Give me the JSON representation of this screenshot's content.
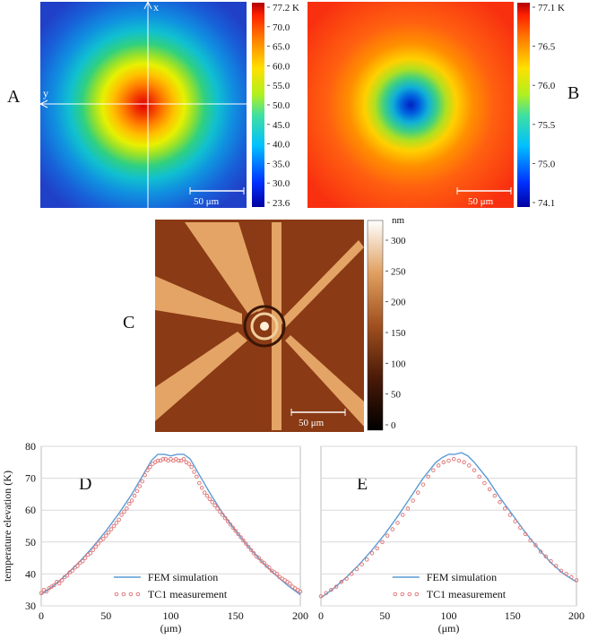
{
  "panels": {
    "A": {
      "letter": "A",
      "axis_x": "x",
      "axis_y": "y",
      "scalebar": "50 μm",
      "colorbar_ticks": [
        "77.2 K",
        "70.0",
        "65.0",
        "60.0",
        "55.0",
        "50.0",
        "45.0",
        "40.0",
        "35.0",
        "30.0",
        "23.6"
      ]
    },
    "B": {
      "letter": "B",
      "scalebar": "50 μm",
      "colorbar_ticks": [
        "77.1 K",
        "76.5",
        "76.0",
        "75.5",
        "75.0",
        "74.1"
      ]
    },
    "C": {
      "letter": "C",
      "scalebar": "50 μm",
      "colorbar_unit": "nm",
      "colorbar_ticks": [
        "300",
        "250",
        "200",
        "150",
        "100",
        "50",
        "0"
      ]
    }
  },
  "chart_data": [
    {
      "panel": "D",
      "type": "line",
      "ylabel": "temperature elevation (K)",
      "xlabel": "(μm)",
      "xlim": [
        0,
        200
      ],
      "ylim": [
        30,
        80
      ],
      "x_ticks": [
        0,
        50,
        100,
        150,
        200
      ],
      "y_ticks": [
        30,
        40,
        50,
        60,
        70,
        80
      ],
      "grid": true,
      "legend_position": "bottom-center",
      "series": [
        {
          "name": "FEM simulation",
          "style": "line",
          "color": "#5b9bd5",
          "x": [
            0,
            10,
            20,
            30,
            40,
            50,
            60,
            70,
            75,
            80,
            85,
            90,
            95,
            100,
            105,
            110,
            115,
            120,
            125,
            130,
            140,
            150,
            160,
            170,
            180,
            190,
            200
          ],
          "y": [
            33.5,
            36.5,
            40,
            44,
            48.5,
            53.5,
            59,
            65,
            68.5,
            72,
            75.5,
            77.5,
            77.5,
            77,
            77.5,
            77.5,
            76,
            72.5,
            69,
            65.5,
            59,
            53.5,
            48.5,
            44,
            40,
            36.5,
            33.5
          ]
        },
        {
          "name": "TC1 measurement",
          "style": "markers",
          "color": "#e07070",
          "x": [
            0,
            2,
            4,
            6,
            8,
            10,
            12,
            14,
            16,
            18,
            20,
            22,
            24,
            26,
            28,
            30,
            32,
            34,
            36,
            38,
            40,
            42,
            44,
            46,
            48,
            50,
            52,
            54,
            56,
            58,
            60,
            62,
            64,
            66,
            68,
            70,
            72,
            74,
            76,
            78,
            80,
            82,
            84,
            86,
            88,
            90,
            92,
            94,
            96,
            98,
            100,
            102,
            104,
            106,
            108,
            110,
            112,
            114,
            116,
            118,
            120,
            122,
            124,
            126,
            128,
            130,
            132,
            134,
            136,
            138,
            140,
            142,
            144,
            146,
            148,
            150,
            152,
            154,
            156,
            158,
            160,
            162,
            164,
            166,
            168,
            170,
            172,
            174,
            176,
            178,
            180,
            182,
            184,
            186,
            188,
            190,
            192,
            194,
            196,
            198,
            200
          ],
          "y": [
            34,
            35,
            34.5,
            35.5,
            36,
            36.5,
            37.5,
            37,
            38,
            39,
            39.5,
            40.5,
            41,
            42,
            42.5,
            43.5,
            44,
            45,
            46,
            46.5,
            47.5,
            48.5,
            49.5,
            50.5,
            51,
            52,
            53,
            54,
            55,
            56,
            57,
            58.5,
            59.5,
            60.5,
            62,
            63,
            64.5,
            66,
            67.5,
            69,
            71,
            72.5,
            73.5,
            74.5,
            75,
            75.5,
            75.5,
            76,
            76,
            75.5,
            76,
            75.5,
            76,
            75.5,
            75.5,
            76,
            75,
            74.5,
            73.5,
            72,
            70.5,
            68.5,
            67,
            65.5,
            64.5,
            63.5,
            62.5,
            61.5,
            60.5,
            59.5,
            58.5,
            57.5,
            56.5,
            55.5,
            54.5,
            53.5,
            52.5,
            51.5,
            50.5,
            49.5,
            48.5,
            47.5,
            46.5,
            45.5,
            45,
            44,
            43.5,
            42.5,
            42,
            41,
            40.5,
            40,
            39,
            38.5,
            38,
            37.5,
            37,
            36,
            35.5,
            35,
            34.5
          ]
        }
      ]
    },
    {
      "panel": "E",
      "type": "line",
      "xlabel": "(μm)",
      "xlim": [
        0,
        200
      ],
      "ylim": [
        30,
        80
      ],
      "x_ticks": [
        0,
        50,
        100,
        150,
        200
      ],
      "grid": true,
      "legend_position": "bottom-center",
      "series": [
        {
          "name": "FEM simulation",
          "style": "line",
          "color": "#5b9bd5",
          "x": [
            0,
            10,
            20,
            30,
            40,
            50,
            60,
            70,
            80,
            90,
            95,
            100,
            105,
            110,
            115,
            120,
            130,
            140,
            150,
            160,
            170,
            180,
            190,
            200
          ],
          "y": [
            32.5,
            35.5,
            39,
            43,
            47.5,
            52.5,
            58,
            64,
            70,
            75,
            76.5,
            77.5,
            77.5,
            78,
            77,
            75,
            70,
            64,
            58.5,
            53,
            48,
            43.5,
            40,
            37.5
          ]
        },
        {
          "name": "TC1 measurement",
          "style": "markers",
          "color": "#e07070",
          "x": [
            0,
            4,
            8,
            12,
            16,
            20,
            24,
            28,
            32,
            36,
            40,
            44,
            48,
            52,
            56,
            60,
            64,
            68,
            72,
            76,
            80,
            84,
            88,
            92,
            96,
            100,
            104,
            108,
            112,
            116,
            120,
            124,
            128,
            132,
            136,
            140,
            144,
            148,
            152,
            156,
            160,
            164,
            168,
            172,
            176,
            180,
            184,
            188,
            192,
            196,
            200
          ],
          "y": [
            33,
            34,
            35,
            36,
            37.5,
            38.5,
            40,
            41.5,
            43,
            44.5,
            46.5,
            48,
            50,
            52,
            54,
            56,
            58.5,
            60.5,
            63,
            65.5,
            68,
            70.5,
            72.5,
            74,
            75,
            75.5,
            76,
            75.5,
            75,
            74,
            72.5,
            70.5,
            68.5,
            66.5,
            64.5,
            62.5,
            60.5,
            58.5,
            56.5,
            54.5,
            52.5,
            50.5,
            49,
            47,
            45.5,
            44,
            42.5,
            41,
            40,
            39,
            38
          ]
        }
      ]
    }
  ]
}
